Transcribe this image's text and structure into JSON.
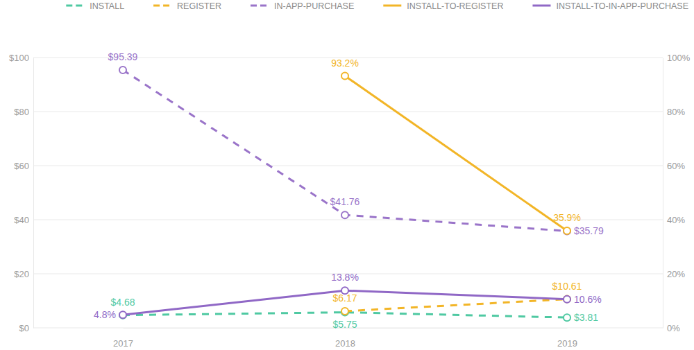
{
  "chart_data": {
    "type": "line",
    "categories": [
      "2017",
      "2018",
      "2019"
    ],
    "ylim": [
      0,
      100
    ],
    "yticks": [
      {
        "value": 0,
        "label": "$0"
      },
      {
        "value": 20,
        "label": "$20"
      },
      {
        "value": 40,
        "label": "$40"
      },
      {
        "value": 60,
        "label": "$60"
      },
      {
        "value": 80,
        "label": "$80"
      },
      {
        "value": 100,
        "label": "$100"
      }
    ],
    "y2lim": [
      0,
      100
    ],
    "y2ticks": [
      {
        "value": 0,
        "label": "0%"
      },
      {
        "value": 20,
        "label": "20%"
      },
      {
        "value": 40,
        "label": "40%"
      },
      {
        "value": 60,
        "label": "60%"
      },
      {
        "value": 80,
        "label": "80%"
      },
      {
        "value": 100,
        "label": "100%"
      }
    ],
    "grid": true,
    "legend": "top",
    "data_labels": true,
    "series": [
      {
        "name": "INSTALL",
        "color": "#4fc9a2",
        "line_style": "dashed",
        "marker": "circle",
        "values": [
          4.68,
          5.75,
          3.81
        ],
        "value_labels": [
          "$4.68",
          "$5.75",
          "$3.81"
        ]
      },
      {
        "name": "REGISTER",
        "color": "#f2b527",
        "line_style": "dashed",
        "marker": "circle",
        "values": [
          null,
          6.17,
          10.61
        ],
        "value_labels": [
          null,
          "$6.17",
          "$10.61"
        ]
      },
      {
        "name": "IN-APP-PURCHASE",
        "color": "#9a74c9",
        "line_style": "dashed",
        "marker": "circle",
        "values": [
          95.39,
          41.76,
          35.79
        ],
        "value_labels": [
          "$95.39",
          "$41.76",
          "$35.79"
        ]
      },
      {
        "name": "INSTALL-TO-REGISTER",
        "color": "#f2b527",
        "line_style": "solid",
        "marker": "circle",
        "axis": "y2",
        "values": [
          null,
          93.2,
          35.9
        ],
        "value_labels": [
          null,
          "93.2%",
          "35.9%"
        ]
      },
      {
        "name": "INSTALL-TO-IN-APP-PURCHASE",
        "color": "#9068c6",
        "line_style": "solid",
        "marker": "circle",
        "axis": "y2",
        "values": [
          4.8,
          13.8,
          10.6
        ],
        "value_labels": [
          "4.8%",
          "13.8%",
          "10.6%"
        ]
      }
    ]
  }
}
